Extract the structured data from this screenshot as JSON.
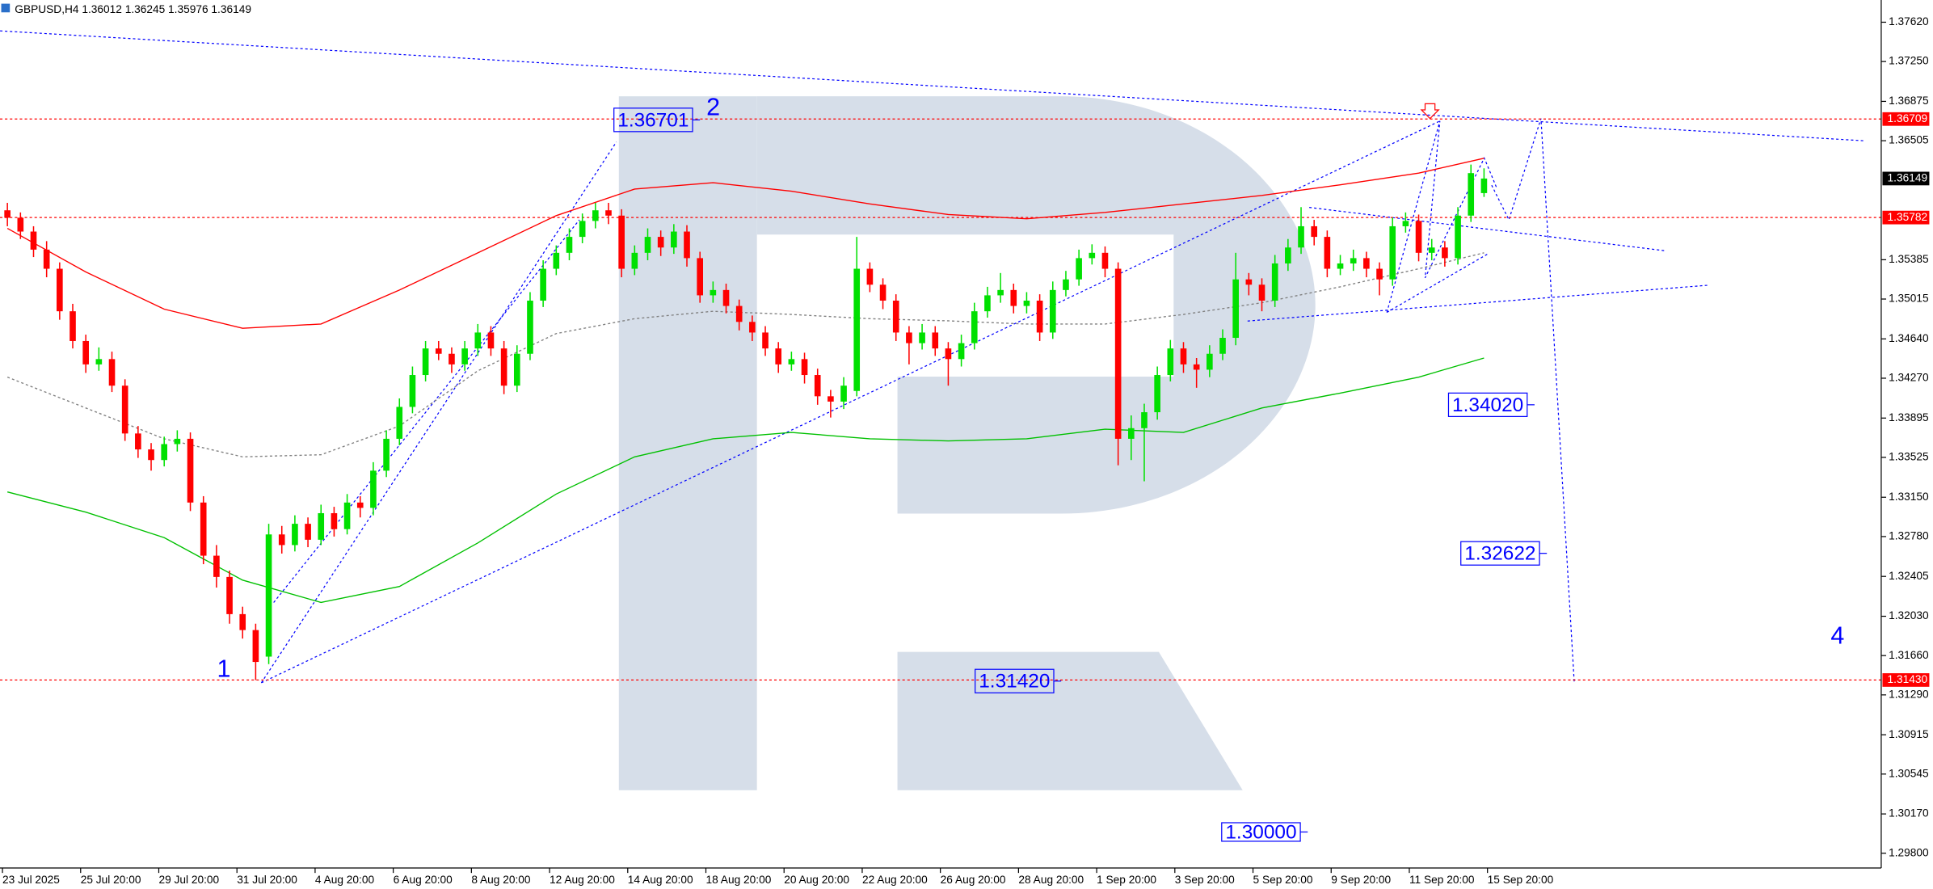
{
  "chart_data": {
    "type": "candlestick",
    "title": "GBPUSD,H4  1.36012 1.36245 1.35976 1.36149",
    "up_color": "#00e000",
    "down_color": "#ff0000",
    "x_labels": [
      "23 Jul 2025",
      "25 Jul 20:00",
      "29 Jul 20:00",
      "31 Jul 20:00",
      "4 Aug 20:00",
      "6 Aug 20:00",
      "8 Aug 20:00",
      "12 Aug 20:00",
      "14 Aug 20:00",
      "18 Aug 20:00",
      "20 Aug 20:00",
      "22 Aug 20:00",
      "26 Aug 20:00",
      "28 Aug 20:00",
      "1 Sep 20:00",
      "3 Sep 20:00",
      "5 Sep 20:00",
      "9 Sep 20:00",
      "11 Sep 20:00",
      "15 Sep 20:00"
    ],
    "ylim": [
      1.29661,
      1.37829
    ],
    "yticks": [
      {
        "value": 1.3762,
        "label": "1.37620"
      },
      {
        "value": 1.3725,
        "label": "1.37250"
      },
      1.36875,
      1.36505,
      1.35385,
      1.35015,
      {
        "value": 1.3464,
        "label": "1.34640"
      },
      {
        "value": 1.3427,
        "label": "1.34270"
      },
      1.33895,
      1.33525,
      {
        "value": 1.3315,
        "label": "1.33150"
      },
      {
        "value": 1.3278,
        "label": "1.32780"
      },
      1.32405,
      {
        "value": 1.3203,
        "label": "1.32030"
      },
      {
        "value": 1.3166,
        "label": "1.31660"
      },
      {
        "value": 1.3129,
        "label": "1.31290"
      },
      1.30915,
      1.30545,
      {
        "value": 1.3017,
        "label": "1.30170"
      },
      {
        "value": 1.298,
        "label": "1.29800"
      }
    ],
    "price_lines": [
      1.36709,
      1.35782,
      {
        "value": 1.3143,
        "label": "1.31430"
      }
    ],
    "current_price": 1.36149,
    "targets": [
      1.36701,
      {
        "value": 1.3402,
        "label": "1.34020"
      },
      1.32622,
      {
        "value": 1.3142,
        "label": "1.31420"
      },
      {
        "value": 1.3,
        "label": "1.30000"
      }
    ],
    "wave_labels": [
      "1",
      "2",
      "4"
    ],
    "ohlc": [
      [
        1.3585,
        1.3592,
        1.357,
        1.3578
      ],
      [
        1.3578,
        1.3583,
        1.3558,
        1.3565
      ],
      [
        1.3565,
        1.357,
        1.3541,
        1.3548
      ],
      [
        1.3548,
        1.3556,
        1.3522,
        1.353
      ],
      [
        1.353,
        1.3536,
        1.3482,
        1.349
      ],
      [
        1.349,
        1.3497,
        1.3455,
        1.3462
      ],
      [
        1.3462,
        1.3468,
        1.3432,
        1.344
      ],
      [
        1.344,
        1.3456,
        1.3434,
        1.3445
      ],
      [
        1.3445,
        1.3452,
        1.3414,
        1.342
      ],
      [
        1.342,
        1.3426,
        1.3368,
        1.3375
      ],
      [
        1.3375,
        1.3382,
        1.3352,
        1.336
      ],
      [
        1.336,
        1.3366,
        1.334,
        1.335
      ],
      [
        1.335,
        1.3372,
        1.3344,
        1.3365
      ],
      [
        1.3365,
        1.3378,
        1.3358,
        1.337
      ],
      [
        1.337,
        1.3376,
        1.3302,
        1.331
      ],
      [
        1.331,
        1.3316,
        1.3252,
        1.326
      ],
      [
        1.326,
        1.327,
        1.323,
        1.324
      ],
      [
        1.324,
        1.3246,
        1.3196,
        1.3205
      ],
      [
        1.3205,
        1.3212,
        1.3182,
        1.319
      ],
      [
        1.319,
        1.3196,
        1.3143,
        1.316
      ],
      [
        1.3165,
        1.329,
        1.3158,
        1.328
      ],
      [
        1.328,
        1.3288,
        1.3262,
        1.327
      ],
      [
        1.327,
        1.3298,
        1.3264,
        1.329
      ],
      [
        1.329,
        1.3296,
        1.3268,
        1.3275
      ],
      [
        1.3275,
        1.3308,
        1.327,
        1.33
      ],
      [
        1.33,
        1.3306,
        1.3278,
        1.3285
      ],
      [
        1.3285,
        1.3318,
        1.328,
        1.331
      ],
      [
        1.331,
        1.3316,
        1.3296,
        1.3305
      ],
      [
        1.3305,
        1.3348,
        1.3298,
        1.334
      ],
      [
        1.334,
        1.3378,
        1.3334,
        1.337
      ],
      [
        1.337,
        1.3408,
        1.3364,
        1.34
      ],
      [
        1.34,
        1.3438,
        1.3394,
        1.343
      ],
      [
        1.343,
        1.3462,
        1.3424,
        1.3455
      ],
      [
        1.3455,
        1.3462,
        1.3444,
        1.345
      ],
      [
        1.345,
        1.3456,
        1.3432,
        1.344
      ],
      [
        1.344,
        1.3462,
        1.3434,
        1.3455
      ],
      [
        1.3455,
        1.3478,
        1.3448,
        1.347
      ],
      [
        1.347,
        1.3476,
        1.3448,
        1.3455
      ],
      [
        1.3455,
        1.3462,
        1.3412,
        1.342
      ],
      [
        1.342,
        1.3458,
        1.3414,
        1.345
      ],
      [
        1.345,
        1.3508,
        1.3444,
        1.35
      ],
      [
        1.35,
        1.3538,
        1.3494,
        1.353
      ],
      [
        1.353,
        1.3552,
        1.3524,
        1.3545
      ],
      [
        1.3545,
        1.3568,
        1.3538,
        1.356
      ],
      [
        1.356,
        1.3582,
        1.3554,
        1.3575
      ],
      [
        1.3575,
        1.3592,
        1.3568,
        1.3585
      ],
      [
        1.3585,
        1.3592,
        1.3572,
        1.358
      ],
      [
        1.358,
        1.3586,
        1.3522,
        1.353
      ],
      [
        1.353,
        1.3552,
        1.3524,
        1.3545
      ],
      [
        1.3545,
        1.3568,
        1.3538,
        1.356
      ],
      [
        1.356,
        1.3566,
        1.3542,
        1.355
      ],
      [
        1.355,
        1.3572,
        1.3544,
        1.3565
      ],
      [
        1.3565,
        1.3571,
        1.3532,
        1.354
      ],
      [
        1.354,
        1.3546,
        1.3498,
        1.3505
      ],
      [
        1.3505,
        1.3518,
        1.3498,
        1.351
      ],
      [
        1.351,
        1.3516,
        1.3488,
        1.3495
      ],
      [
        1.3495,
        1.3501,
        1.3472,
        1.348
      ],
      [
        1.348,
        1.3486,
        1.3462,
        1.347
      ],
      [
        1.347,
        1.3476,
        1.3448,
        1.3455
      ],
      [
        1.3455,
        1.3461,
        1.3432,
        1.344
      ],
      [
        1.344,
        1.3452,
        1.3434,
        1.3445
      ],
      [
        1.3445,
        1.3451,
        1.3422,
        1.343
      ],
      [
        1.343,
        1.3436,
        1.3402,
        1.341
      ],
      [
        1.341,
        1.3416,
        1.339,
        1.3405
      ],
      [
        1.3405,
        1.3428,
        1.3398,
        1.342
      ],
      [
        1.3415,
        1.356,
        1.341,
        1.353
      ],
      [
        1.353,
        1.3536,
        1.3508,
        1.3515
      ],
      [
        1.3515,
        1.3521,
        1.3492,
        1.35
      ],
      [
        1.35,
        1.3506,
        1.3462,
        1.347
      ],
      [
        1.347,
        1.3476,
        1.344,
        1.346
      ],
      [
        1.346,
        1.3478,
        1.3454,
        1.347
      ],
      [
        1.347,
        1.3476,
        1.3448,
        1.3455
      ],
      [
        1.3455,
        1.3461,
        1.342,
        1.3445
      ],
      [
        1.3445,
        1.3468,
        1.3438,
        1.346
      ],
      [
        1.346,
        1.3498,
        1.3454,
        1.349
      ],
      [
        1.349,
        1.3513,
        1.3484,
        1.3505
      ],
      [
        1.3505,
        1.3526,
        1.3498,
        1.351
      ],
      [
        1.351,
        1.3516,
        1.3488,
        1.3495
      ],
      [
        1.3495,
        1.3508,
        1.3488,
        1.35
      ],
      [
        1.35,
        1.3506,
        1.3462,
        1.347
      ],
      [
        1.347,
        1.3518,
        1.3464,
        1.351
      ],
      [
        1.351,
        1.3528,
        1.3504,
        1.352
      ],
      [
        1.352,
        1.3548,
        1.3514,
        1.354
      ],
      [
        1.354,
        1.3553,
        1.3534,
        1.3545
      ],
      [
        1.3545,
        1.3551,
        1.3522,
        1.353
      ],
      [
        1.353,
        1.3536,
        1.3345,
        1.337
      ],
      [
        1.337,
        1.3392,
        1.335,
        1.338
      ],
      [
        1.338,
        1.3403,
        1.333,
        1.3395
      ],
      [
        1.3395,
        1.3438,
        1.3388,
        1.343
      ],
      [
        1.343,
        1.3463,
        1.3424,
        1.3455
      ],
      [
        1.3455,
        1.3461,
        1.3432,
        1.344
      ],
      [
        1.344,
        1.3446,
        1.3418,
        1.3435
      ],
      [
        1.3435,
        1.3458,
        1.3428,
        1.345
      ],
      [
        1.345,
        1.3473,
        1.3444,
        1.3465
      ],
      [
        1.3465,
        1.3545,
        1.3458,
        1.352
      ],
      [
        1.352,
        1.3526,
        1.3505,
        1.3515
      ],
      [
        1.3515,
        1.3521,
        1.349,
        1.35
      ],
      [
        1.35,
        1.3543,
        1.3494,
        1.3535
      ],
      [
        1.3535,
        1.3558,
        1.3528,
        1.355
      ],
      [
        1.355,
        1.3588,
        1.3544,
        1.357
      ],
      [
        1.357,
        1.3576,
        1.3552,
        1.356
      ],
      [
        1.356,
        1.3566,
        1.3522,
        1.353
      ],
      [
        1.353,
        1.3543,
        1.3524,
        1.3535
      ],
      [
        1.3535,
        1.3548,
        1.3528,
        1.354
      ],
      [
        1.354,
        1.3546,
        1.3522,
        1.353
      ],
      [
        1.353,
        1.3536,
        1.3505,
        1.352
      ],
      [
        1.352,
        1.3578,
        1.3514,
        1.357
      ],
      [
        1.357,
        1.3583,
        1.3564,
        1.3575
      ],
      [
        1.3575,
        1.3581,
        1.3537,
        1.3545
      ],
      [
        1.3545,
        1.3558,
        1.3538,
        1.355
      ],
      [
        1.355,
        1.3556,
        1.3532,
        1.354
      ],
      [
        1.354,
        1.3588,
        1.3534,
        1.358
      ],
      [
        1.358,
        1.3628,
        1.3574,
        1.362
      ],
      [
        1.36012,
        1.36245,
        1.35976,
        1.36149
      ]
    ],
    "moving_averages": [
      {
        "color": "#ff0000",
        "style": "solid",
        "x": [
          0,
          6,
          12,
          18,
          24,
          30,
          36,
          42,
          48,
          54,
          60,
          66,
          72,
          78,
          84,
          90,
          96,
          102,
          108,
          113
        ],
        "values": [
          1.3568,
          1.3527,
          1.3492,
          1.3474,
          1.3478,
          1.351,
          1.3545,
          1.358,
          1.3605,
          1.3611,
          1.3603,
          1.3591,
          1.3581,
          1.3577,
          1.3583,
          1.3591,
          1.3599,
          1.3609,
          1.362,
          1.3634
        ]
      },
      {
        "color": "#808080",
        "style": "dotted",
        "x": [
          0,
          6,
          12,
          18,
          24,
          30,
          36,
          42,
          48,
          54,
          60,
          66,
          72,
          78,
          84,
          90,
          96,
          102,
          108,
          113
        ],
        "values": [
          1.3428,
          1.3399,
          1.337,
          1.3353,
          1.3355,
          1.3382,
          1.3434,
          1.3469,
          1.3483,
          1.349,
          1.3487,
          1.3483,
          1.3481,
          1.3478,
          1.3478,
          1.3487,
          1.3498,
          1.3513,
          1.353,
          1.3545
        ]
      },
      {
        "color": "#00c000",
        "style": "solid",
        "x": [
          0,
          6,
          12,
          18,
          24,
          30,
          36,
          42,
          48,
          54,
          60,
          66,
          72,
          78,
          84,
          90,
          96,
          102,
          108,
          113
        ],
        "values": [
          1.332,
          1.3301,
          1.3277,
          1.3237,
          1.3216,
          1.3231,
          1.3272,
          1.3318,
          1.3353,
          1.337,
          1.3376,
          1.337,
          1.3368,
          1.337,
          1.3379,
          1.3376,
          1.3399,
          1.3413,
          1.3428,
          1.3446
        ]
      }
    ]
  }
}
